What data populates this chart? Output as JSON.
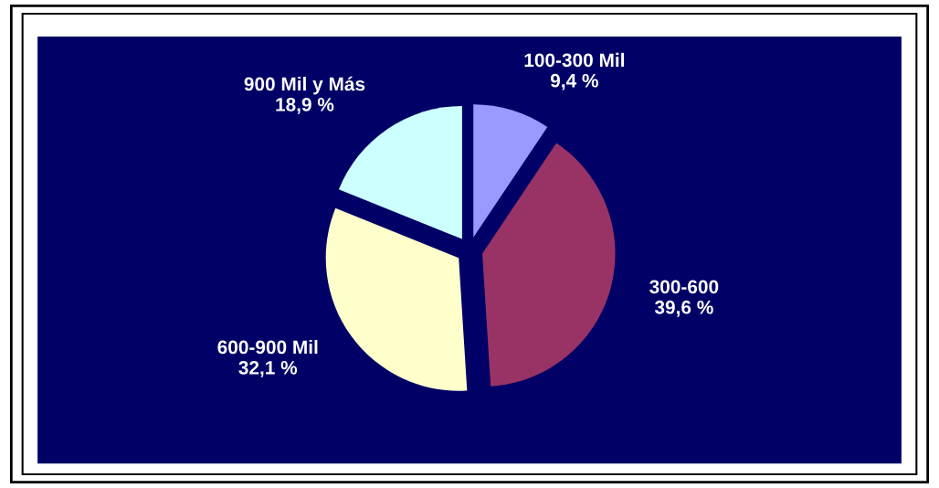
{
  "chart_data": {
    "type": "pie",
    "categories": [
      "100-300 Mil",
      "300-600",
      "600-900 Mil",
      "900 Mil y Más"
    ],
    "values": [
      9.4,
      39.6,
      32.1,
      18.9
    ],
    "value_labels": [
      "9,4 %",
      "39,6 %",
      "32,1 %",
      "18,9 %"
    ],
    "colors": [
      "#9999ff",
      "#993366",
      "#ffffcc",
      "#ccffff"
    ]
  }
}
